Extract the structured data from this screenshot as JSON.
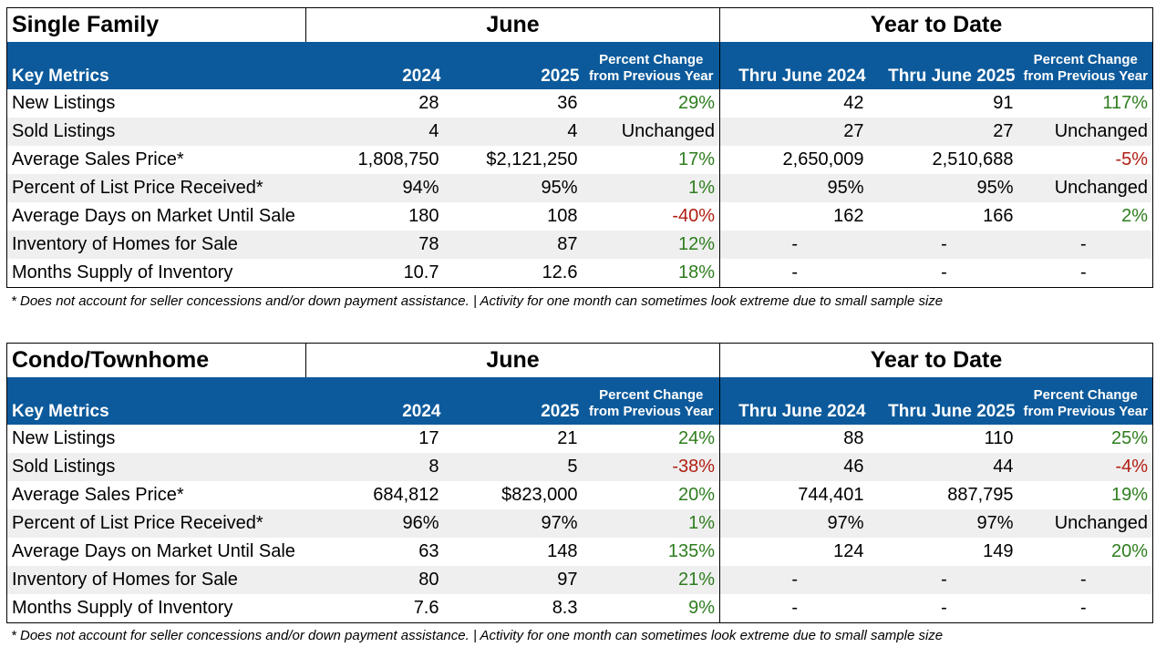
{
  "tables": [
    {
      "title": "Single Family",
      "june_label": "June",
      "ytd_label": "Year to Date",
      "headers": {
        "key_metrics": "Key Metrics",
        "y2024": "2024",
        "y2025": "2025",
        "pct_line1": "Percent Change",
        "pct_line2": "from Previous Year",
        "thru2024": "Thru June 2024",
        "thru2025": "Thru June 2025"
      },
      "rows": [
        {
          "metric": "New Listings",
          "v2024": "28",
          "v2025": "36",
          "pct": "29%",
          "pct_trend": "up",
          "ytd2024": "42",
          "ytd2025": "91",
          "ytd_pct": "117%",
          "ytd_trend": "up"
        },
        {
          "metric": "Sold Listings",
          "v2024": "4",
          "v2025": "4",
          "pct": "Unchanged",
          "pct_trend": "neutral",
          "ytd2024": "27",
          "ytd2025": "27",
          "ytd_pct": "Unchanged",
          "ytd_trend": "neutral"
        },
        {
          "metric": "Average Sales Price*",
          "v2024": "1,808,750",
          "v2025": "$2,121,250",
          "pct": "17%",
          "pct_trend": "up",
          "ytd2024": "2,650,009",
          "ytd2025": "2,510,688",
          "ytd_pct": "-5%",
          "ytd_trend": "down"
        },
        {
          "metric": "Percent of List Price Received*",
          "v2024": "94%",
          "v2025": "95%",
          "pct": "1%",
          "pct_trend": "up",
          "ytd2024": "95%",
          "ytd2025": "95%",
          "ytd_pct": "Unchanged",
          "ytd_trend": "neutral"
        },
        {
          "metric": "Average Days on Market Until Sale",
          "v2024": "180",
          "v2025": "108",
          "pct": "-40%",
          "pct_trend": "down",
          "ytd2024": "162",
          "ytd2025": "166",
          "ytd_pct": "2%",
          "ytd_trend": "up"
        },
        {
          "metric": "Inventory of Homes for Sale",
          "v2024": "78",
          "v2025": "87",
          "pct": "12%",
          "pct_trend": "up",
          "ytd2024": "-",
          "ytd2025": "-",
          "ytd_pct": "-",
          "ytd_trend": "neutral"
        },
        {
          "metric": "Months Supply of Inventory",
          "v2024": "10.7",
          "v2025": "12.6",
          "pct": "18%",
          "pct_trend": "up",
          "ytd2024": "-",
          "ytd2025": "-",
          "ytd_pct": "-",
          "ytd_trend": "neutral"
        }
      ],
      "footnote": "* Does not account for seller concessions and/or down payment assistance. | Activity for one month can sometimes look extreme due to small sample size"
    },
    {
      "title": "Condo/Townhome",
      "june_label": "June",
      "ytd_label": "Year to Date",
      "headers": {
        "key_metrics": "Key Metrics",
        "y2024": "2024",
        "y2025": "2025",
        "pct_line1": "Percent Change",
        "pct_line2": "from Previous Year",
        "thru2024": "Thru June 2024",
        "thru2025": "Thru June 2025"
      },
      "rows": [
        {
          "metric": "New Listings",
          "v2024": "17",
          "v2025": "21",
          "pct": "24%",
          "pct_trend": "up",
          "ytd2024": "88",
          "ytd2025": "110",
          "ytd_pct": "25%",
          "ytd_trend": "up"
        },
        {
          "metric": "Sold Listings",
          "v2024": "8",
          "v2025": "5",
          "pct": "-38%",
          "pct_trend": "down",
          "ytd2024": "46",
          "ytd2025": "44",
          "ytd_pct": "-4%",
          "ytd_trend": "down"
        },
        {
          "metric": "Average Sales Price*",
          "v2024": "684,812",
          "v2025": "$823,000",
          "pct": "20%",
          "pct_trend": "up",
          "ytd2024": "744,401",
          "ytd2025": "887,795",
          "ytd_pct": "19%",
          "ytd_trend": "up"
        },
        {
          "metric": "Percent of List Price Received*",
          "v2024": "96%",
          "v2025": "97%",
          "pct": "1%",
          "pct_trend": "up",
          "ytd2024": "97%",
          "ytd2025": "97%",
          "ytd_pct": "Unchanged",
          "ytd_trend": "neutral"
        },
        {
          "metric": "Average Days on Market Until Sale",
          "v2024": "63",
          "v2025": "148",
          "pct": "135%",
          "pct_trend": "up",
          "ytd2024": "124",
          "ytd2025": "149",
          "ytd_pct": "20%",
          "ytd_trend": "up"
        },
        {
          "metric": "Inventory of Homes for Sale",
          "v2024": "80",
          "v2025": "97",
          "pct": "21%",
          "pct_trend": "up",
          "ytd2024": "-",
          "ytd2025": "-",
          "ytd_pct": "-",
          "ytd_trend": "neutral"
        },
        {
          "metric": "Months Supply of Inventory",
          "v2024": "7.6",
          "v2025": "8.3",
          "pct": "9%",
          "pct_trend": "up",
          "ytd2024": "-",
          "ytd2025": "-",
          "ytd_pct": "-",
          "ytd_trend": "neutral"
        }
      ],
      "footnote": "* Does not account for seller concessions and/or down payment assistance. | Activity for one month can sometimes look extreme due to small sample size"
    }
  ],
  "colors": {
    "header_bg": "#0c5a9b",
    "increase": "#2e7d1e",
    "decrease": "#b01e12",
    "alt_row": "#efefef"
  }
}
